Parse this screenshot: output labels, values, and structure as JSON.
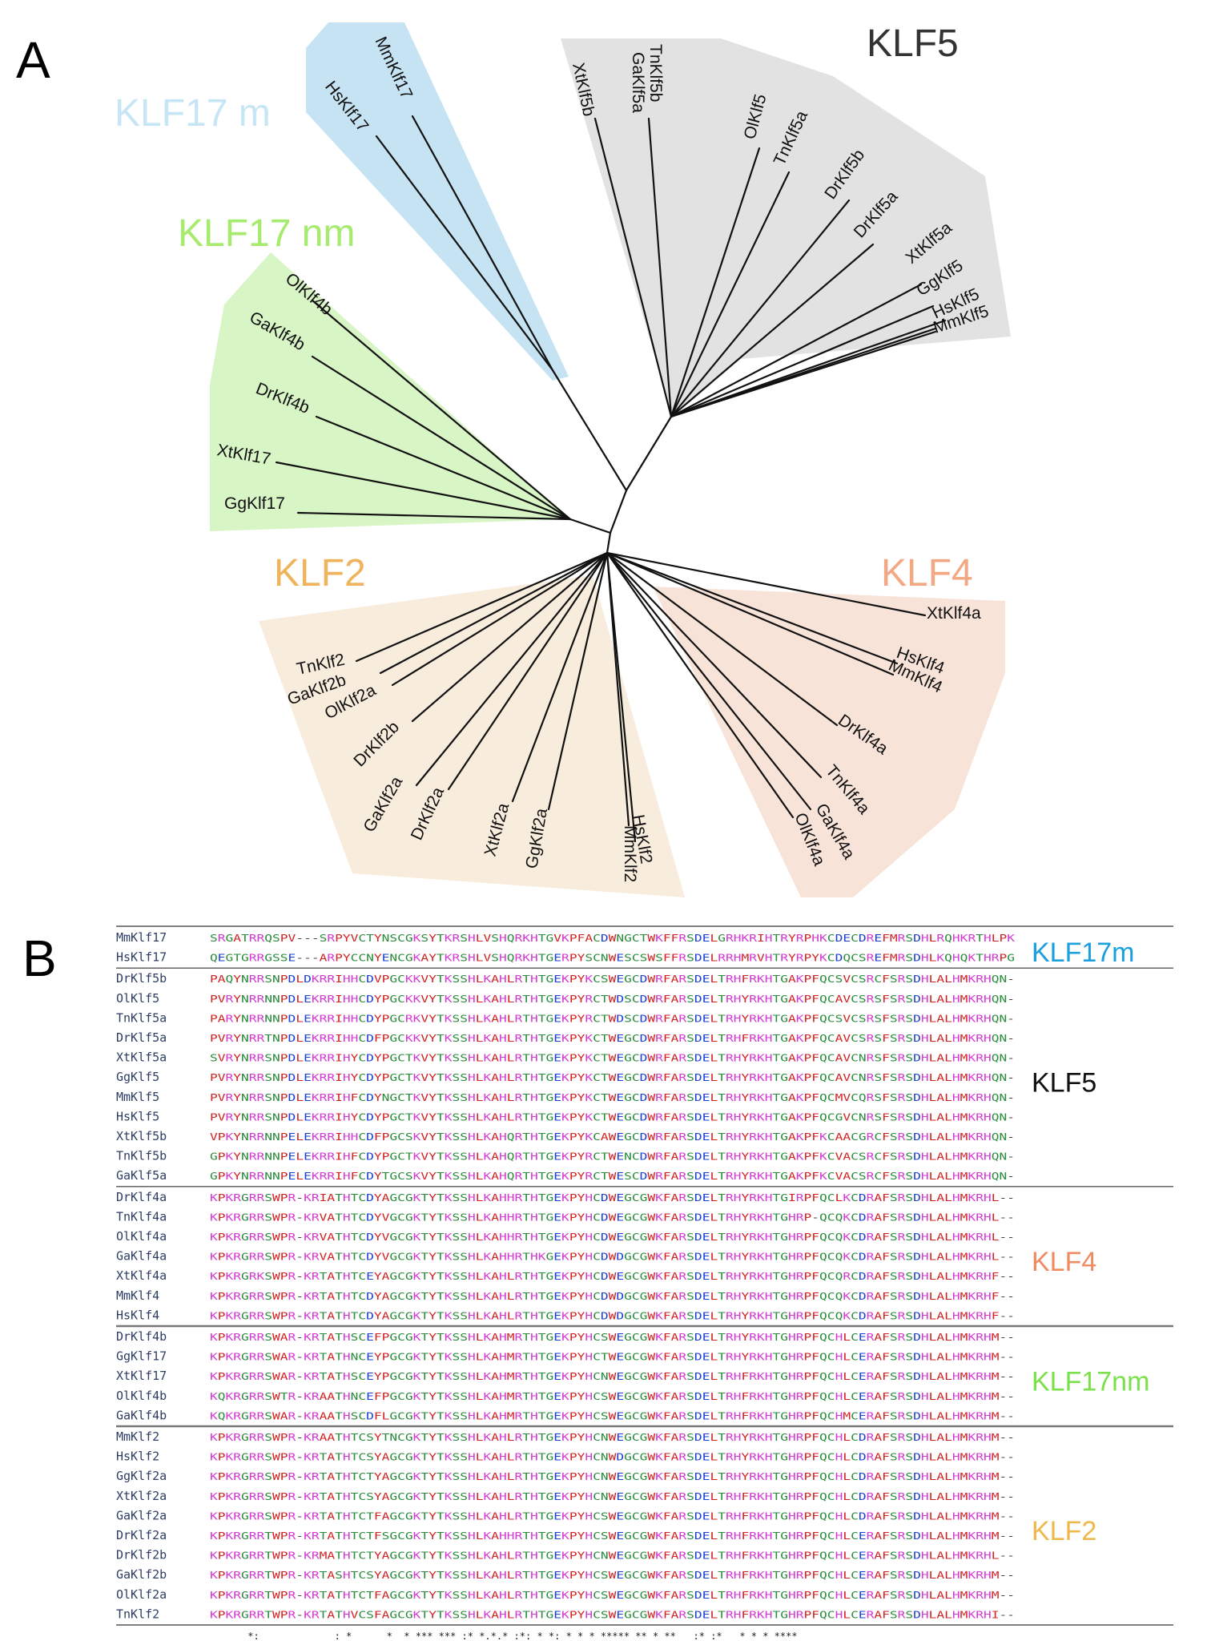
{
  "panel_a": {
    "letter": "A",
    "clades": [
      {
        "id": "klf17m",
        "label": "KLF17 m",
        "fill": "#c5e3f2",
        "text_color": "#c7e6f5",
        "leaves": [
          "MmKlf17",
          "HsKlf17"
        ]
      },
      {
        "id": "klf5",
        "label": "KLF5",
        "fill": "#e2e2e2",
        "text_color": "#333333",
        "leaves": [
          "XtKlf5b",
          "GaKlf5a",
          "TnKlf5b",
          "OlKlf5",
          "TnKlf5a",
          "DrKlf5b",
          "DrKlf5a",
          "XtKlf5a",
          "GgKlf5",
          "HsKlf5",
          "MmKlf5"
        ]
      },
      {
        "id": "klf17nm",
        "label": "KLF17 nm",
        "fill": "#d8f5c6",
        "text_color": "#a6ea6e",
        "leaves": [
          "OlKlf4b",
          "GaKlf4b",
          "DrKlf4b",
          "XtKlf17",
          "GgKlf17"
        ]
      },
      {
        "id": "klf2",
        "label": "KLF2",
        "fill": "#f8ecdc",
        "text_color": "#efb35c",
        "leaves": [
          "TnKlf2",
          "GaKlf2b",
          "OlKlf2a",
          "DrKlf2b",
          "GaKlf2a",
          "DrKlf2a",
          "XtKlf2a",
          "GgKlf2a",
          "HsKlf2",
          "MmKlf2"
        ]
      },
      {
        "id": "klf4",
        "label": "KLF4",
        "fill": "#f8e3d9",
        "text_color": "#f2a983",
        "leaves": [
          "XtKlf4a",
          "HsKlf4",
          "MmKlf4",
          "DrKlf4a",
          "TnKlf4a",
          "GaKlf4a",
          "OlKlf4a"
        ]
      }
    ]
  },
  "panel_b": {
    "letter": "B",
    "groups": [
      {
        "label": "KLF17m",
        "color": "#1aa0dc",
        "rows": [
          {
            "name": "MmKlf17",
            "seq": "SRGATRRQSPV---SRPYVCTYNSCGKSYTKRSHLVSHQRKHTGVKPFACDWNGCTWKFFRSDELGRHKRIHTRYRPHKCDECDREFMRSDHLRQHKRTHLPK"
          },
          {
            "name": "HsKlf17",
            "seq": "QEGTGRRGSSE---ARPYCCNYENCGKAYTKRSHLVSHQRKHTGERPYSCNWESCSWSFFRSDELRRHMRVHTRYRPYKCDQCSREFMRSDHLKQHQKTHRPG"
          }
        ]
      },
      {
        "label": "KLF5",
        "color": "#111111",
        "rows": [
          {
            "name": "DrKlf5b",
            "seq": "PAQYNRRSNPDLDKRRIHHCDVPGCKKVYTKSSHLKAHLRTHTGEKPYKCSWEGCDWRFARSDELTRHFRKHTGAKPFQCSVCSRCFSRSDHLALHMKRHQN-"
          },
          {
            "name": "OlKlf5",
            "seq": "PVRYNRRNNPDLEKRRIHHCDYPGCKKVYTKSSHLKAHLRTHTGEKPYRCTWDSCDWRFARSDELTRHYRKHTGAKPFQCAVCSRSFSRSDHLALHMKRHQN-"
          },
          {
            "name": "TnKlf5a",
            "seq": "PARYNRRNNPDLEKRRIHHCDYPGCRKVYTKSSHLKAHLRTHTGEKPYRCTWDSCDWRFARSDELTRHYRKHTGAKPFQCSVCSRSFSRSDHLALHMKRHQN-"
          },
          {
            "name": "DrKlf5a",
            "seq": "PVRYNRRTNPDLEKRRIHHCDFPGCKKVYTKSSHLKAHLRTHTGEKPYKCTWEGCDWRFARSDELTRHFRKHTGAKPFQCAVCSRSFSRSDHLALHMKRHQN-"
          },
          {
            "name": "XtKlf5a",
            "seq": "SVRYNRRSNPDLEKRRIHYCDYPGCTKVYTKSSHLKAHLRTHTGEKPYKCTWEGCDWRFARSDELTRHYRKHTGAKPFQCAVCNRSFSRSDHLALHMKRHQN-"
          },
          {
            "name": "GgKlf5",
            "seq": "PVRYNRRSNPDLEKRRIHYCDYPGCTKVYTKSSHLKAHLRTHTGEKPYKCTWEGCDWRFARSDELTRHYRKHTGAKPFQCAVCNRSFSRSDHLALHMKRHQN-"
          },
          {
            "name": "MmKlf5",
            "seq": "PVRYNRRSNPDLEKRRIHFCDYNGCTKVYTKSSHLKAHLRTHTGEKPYKCTWEGCDWRFARSDELTRHYRKHTGAKPFQCMVCQRSFSRSDHLALHMKRHQN-"
          },
          {
            "name": "HsKlf5",
            "seq": "PVRYNRRSNPDLEKRRIHYCDYPGCTKVYTKSSHLKAHLRTHTGEKPYKCTWEGCDWRFARSDELTRHYRKHTGAKPFQCGVCNRSFSRSDHLALHMKRHQN-"
          },
          {
            "name": "XtKlf5b",
            "seq": "VPKYNRRNNPELEKRRIHHCDFPGCSKVYTKSSHLKAHQRTHTGEKPYKCAWEGCDWRFARSDELTRHYRKHTGAKPFKCAACGRCFSRSDHLALHMKRHQN-"
          },
          {
            "name": "TnKlf5b",
            "seq": "GPKYNRRNNPELEKRRIHFCDYPGCTKVYTKSSHLKAHQRTHTGEKPYRCTWENCDWRFARSDELTRHYRKHTGAKPFKCVACSRCFSRSDHLALHMKRHQN-"
          },
          {
            "name": "GaKlf5a",
            "seq": "GPKYNRRNNPELEKRRIHFCDYTGCSKVYTKSSHLKAHQRTHTGEKPYRCTWESCDWRFARSDELTRHYRKHTGAKPFKCVACSRCFSRSDHLALHMKRHQN-"
          }
        ]
      },
      {
        "label": "KLF4",
        "color": "#f08a60",
        "rows": [
          {
            "name": "DrKlf4a",
            "seq": "KPKRGRRSWPR-KRIATHTCDYAGCGKTYTKSSHLKAHHRTHTGEKPYHCDWEGCGWKFARSDELTRHYRKHTGIRPFQCLKCDRAFSRSDHLALHMKRHL--"
          },
          {
            "name": "TnKlf4a",
            "seq": "KPKRGRRSWPR-KRVATHTCDYVGCGKTYTKSSHLKAHHRTHTGEKPYHCDWEGCGWKFARSDELTRHYRKHTGHRP-QCQKCDRAFSRSDHLALHMKRHL--"
          },
          {
            "name": "OlKlf4a",
            "seq": "KPKRGRRSWPR-KRVATHTCDYVGCGKTYTKSSHLKAHHRTHTGEKPYHCDWEGCGWKFARSDELTRHYRKHTGHRPFQCQKCDRAFSRSDHLALHMKRHL--"
          },
          {
            "name": "GaKlf4a",
            "seq": "KPKRGRRSWPR-KRVATHTCDYVGCGKTYTKSSHLKAHHRTHKGEKPYHCDWDGCGWKFARSDELTRHYRKHTGHRPFQCQKCDRAFSRSDHLALHMKRHL--"
          },
          {
            "name": "XtKlf4a",
            "seq": "KPKRGRKSWPR-KRTATHTCEYAGCGKTYTKSSHLKAHLRTHTGEKPYHCDWEGCGWKFARSDELTRHYRKHTGHRPFQCQRCDRAFSRSDHLALHMKRHF--"
          },
          {
            "name": "MmKlf4",
            "seq": "KPKRGRRSWPR-KRTATHTCDYAGCGKTYTKSSHLKAHLRTHTGEKPYHCDWDGCGWKFARSDELTRHYRKHTGHRPFQCQKCDRAFSRSDHLALHMKRHF--"
          },
          {
            "name": "HsKlf4",
            "seq": "KPKRGRRSWPR-KRTATHTCDYAGCGKTYTKSSHLKAHLRTHTGEKPYHCDWDGCGWKFARSDELTRHYRKHTGHRPFQCQKCDRAFSRSDHLALHMKRHF--"
          }
        ]
      },
      {
        "label": "KLF17nm",
        "color": "#7be04a",
        "rows": [
          {
            "name": "DrKlf4b",
            "seq": "KPKRGRRSWAR-KRTATHSCEFPGCGKTYTKSSHLKAHMRTHTGEKPYHCSWEGCGWKFARSDELTRHYRKHTGHRPFQCHLCERAFSRSDHLALHMKRHM--"
          },
          {
            "name": "GgKlf17",
            "seq": "KPKRGRRSWAR-KRTATHNCEYPGCGKTYTKSSHLKAHMRTHTGEKPYHCTWEGCGWKFARSDELTRHYRKHTGHRPFQCHLCERAFSRSDHLALHMKRHM--"
          },
          {
            "name": "XtKlf17",
            "seq": "KPKRGRRSWAR-KRTATHSCEYPGCGKTYTKSSHLKAHMRTHTGEKPYHCNWEGCGWKFARSDELTRHFRKHTGHRPFQCHLCERAFSRSDHLALHMKRHM--"
          },
          {
            "name": "OlKlf4b",
            "seq": "KQKRGRRSWTR-KRAATHNCEFPGCGKTYTKSSHLKAHMRTHTGEKPYHCSWEGCGWKFARSDELTRHFRKHTGHRPFQCHLCERAFSRSDHLALHMKRHM--"
          },
          {
            "name": "GaKlf4b",
            "seq": "KQKRGRRSWAR-KRAATHSCDFLGCGKTYTKSSHLKAHMRTHTGEKPYHCSWEGCGWKFARSDELTRHFRKHTGHRPFQCHMCERAFSRSDHLALHMKRHM--"
          }
        ]
      },
      {
        "label": "KLF2",
        "color": "#efb84a",
        "rows": [
          {
            "name": "MmKlf2",
            "seq": "KPKRGRRSWPR-KRAATHTCSYTNCGKTYTKSSHLKAHLRTHTGEKPYHCNWEGCGWKFARSDELTRHYRKHTGHRPFQCHLCDRAFSRSDHLALHMKRHM--"
          },
          {
            "name": "HsKlf2",
            "seq": "KPKRGRRSWPR-KRTATHTCSYAGCGKTYTKSSHLKAHLRTHTGEKPYHCNWDGCGWKFARSDELTRHYRKHTGHRPFQCHLCDRAFSRSDHLALHMKRHM--"
          },
          {
            "name": "GgKlf2a",
            "seq": "KPKRGRRSWPR-KRTATHTCTYAGCGKTYTKSSHLKAHLRTHTGEKPYHCNWEGCGWKFARSDELTRHYRKHTGHRPFQCHLCDRAFSRSDHLALHMKRHM--"
          },
          {
            "name": "XtKlf2a",
            "seq": "KPKRGRRSWPR-KRTATHTCSYAGCGKTYTKSSHLKAHLRTHTGEKPYHCNWEGCGWKFARSDELTRHFRKHTGHRPFQCHLCDRAFSRSDHLALHMKRHM--"
          },
          {
            "name": "GaKlf2a",
            "seq": "KPKRGRRSWPR-KRTATHTCTFAGCGKTYTKSSHLKAHLRTHTGEKPYHCSWEGCGWKFARSDELTRHFRKHTGHRPFQCHLCDRAFSRSDHLALHMKRHM--"
          },
          {
            "name": "DrKlf2a",
            "seq": "KPKRGRRTWPR-KRTATHTCTFSGCGKTYTKSSHLKAHHRTHTGEKPYHCSWEGCGWKFARSDELTRHFRKHTGHRPFQCHLCERAFSRSDHLALHMKRHM--"
          },
          {
            "name": "DrKlf2b",
            "seq": "KPKRGRRTWPR-KRMATHTCTYAGCGKTYTKSSHLKAHLRTHTGEKPYHCNWEGCGWKFARSDELTRHFRKHTGHRPFQCHLCERAFSRSDHLALHMKRHL--"
          },
          {
            "name": "GaKlf2b",
            "seq": "KPKRGRRTWPR-KRTASHTCSYAGCGKTYTKSSHLKAHLRTHTGEKPYHCSWEGCGWKFARSDELTRHFRKHTGHRPFQCHLCERAFSRSDHLALHMKRHM--"
          },
          {
            "name": "OlKlf2a",
            "seq": "KPKRGRRTWPR-KRTATHTCTFAGCGKTYTKSSHLKAHLRTHTGEKPYHCSWEGCGWKFARSDELTRHFRKHTGHRPFQCHLCERAFSRSDHLALHMKRHM--"
          },
          {
            "name": "TnKlf2",
            "seq": "KPKRGRRTWPR-KRTATHVCSFAGCGKTYTKSSHLKAHLRTHTGEKPYHCSWEGCGWKFARSDELTRHFRKHTGHRPFQCHLCERAFSRSDHLALHMKRHI--"
          }
        ]
      }
    ],
    "consensus": " *:             : *      *  * *** *** :* *.*.* :*: * *: * * * ***** ** * **   :* :*   * * * ****"
  }
}
